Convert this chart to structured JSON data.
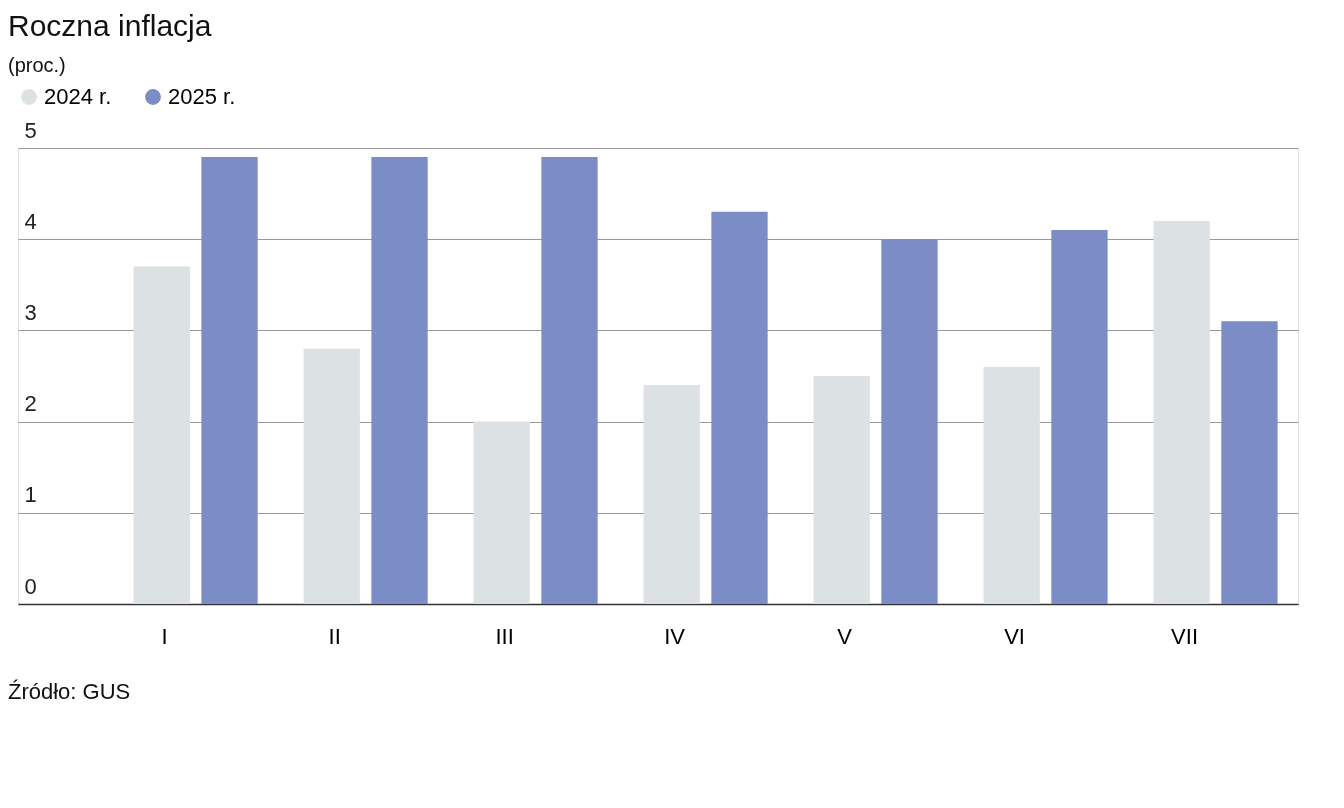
{
  "chart_data": {
    "type": "bar",
    "title": "Roczna inflacja",
    "subtitle": "(proc.)",
    "categories": [
      "I",
      "II",
      "III",
      "IV",
      "V",
      "VI",
      "VII"
    ],
    "series": [
      {
        "name": "2024 r.",
        "color": "#dce1e3",
        "values": [
          3.7,
          2.8,
          2.0,
          2.4,
          2.5,
          2.6,
          4.2
        ]
      },
      {
        "name": "2025 r.",
        "color": "#7b8cc6",
        "values": [
          4.9,
          4.9,
          4.9,
          4.3,
          4.0,
          4.1,
          3.1
        ]
      }
    ],
    "ylim": [
      0,
      5
    ],
    "yticks": [
      0,
      1,
      2,
      3,
      4,
      5
    ],
    "grid": "y",
    "legend": "top left",
    "annotations": [
      "Źródło: GUS"
    ]
  }
}
